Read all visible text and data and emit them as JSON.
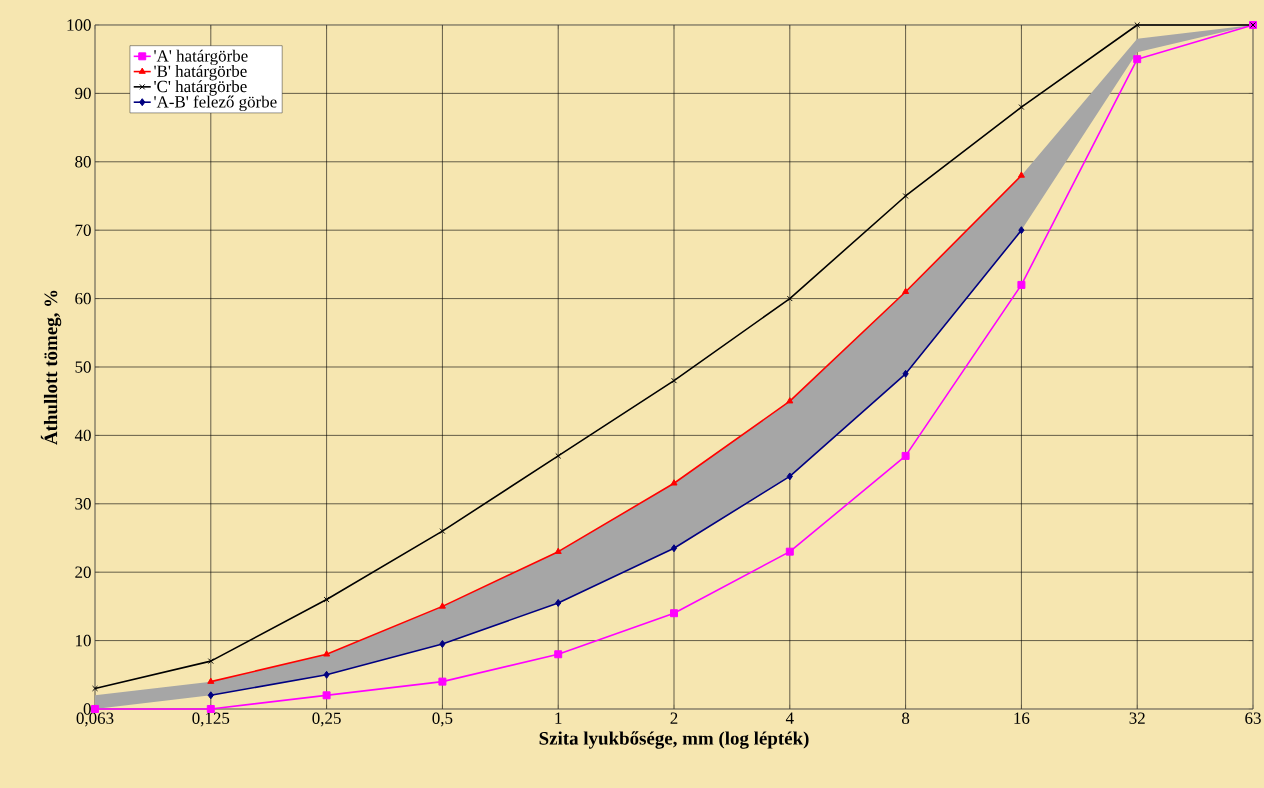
{
  "chart_data": {
    "type": "line",
    "xlabel": "Szita lyukbősége, mm (log lépték)",
    "ylabel": "Áthullott tömeg, %",
    "categories": [
      "0,063",
      "0,125",
      "0,25",
      "0,5",
      "1",
      "2",
      "4",
      "8",
      "16",
      "32",
      "63"
    ],
    "ylim": [
      0,
      100
    ],
    "yticks": [
      0,
      10,
      20,
      30,
      40,
      50,
      60,
      70,
      80,
      90,
      100
    ],
    "grid": true,
    "legend": "top left",
    "series": [
      {
        "name": "'A' határgörbe",
        "color": "#ff00ff",
        "marker": "square",
        "values": [
          0,
          0,
          2,
          4,
          8,
          14,
          23,
          37,
          62,
          95,
          100
        ]
      },
      {
        "name": "'B' határgörbe",
        "color": "#ff0000",
        "marker": "triangle",
        "values": [
          null,
          4,
          8,
          15,
          23,
          33,
          45,
          61,
          78,
          null,
          null
        ]
      },
      {
        "name": "'C' határgörbe",
        "color": "#000000",
        "marker": "cross",
        "values": [
          3,
          7,
          16,
          26,
          37,
          48,
          60,
          75,
          88,
          100,
          100
        ]
      },
      {
        "name": "'A-B' felező görbe",
        "color": "#000080",
        "marker": "diamond",
        "values": [
          null,
          2,
          5,
          9.5,
          15.5,
          23.5,
          34,
          49,
          70,
          null,
          null
        ],
        "lower": [
          0,
          2,
          5,
          9.5,
          15.5,
          23.5,
          34,
          49,
          70,
          96,
          100
        ],
        "upper": [
          2,
          4,
          8,
          15,
          23,
          33,
          45,
          61,
          78,
          98,
          100
        ]
      }
    ]
  }
}
